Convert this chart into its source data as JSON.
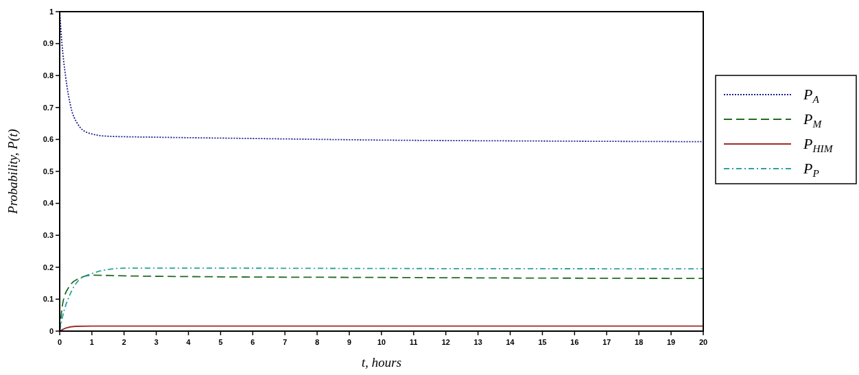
{
  "chart_data": {
    "type": "line",
    "xlabel": "t, hours",
    "ylabel": "Probability, P(t)",
    "legend": "right",
    "grid": false,
    "xlim": [
      0,
      20
    ],
    "xticks": [
      0,
      1,
      2,
      3,
      4,
      5,
      6,
      7,
      8,
      9,
      10,
      11,
      12,
      13,
      14,
      15,
      16,
      17,
      18,
      19,
      20
    ],
    "ylim": [
      0,
      1
    ],
    "yticks": [
      0,
      0.1,
      0.2,
      0.3,
      0.4,
      0.5,
      0.6,
      0.7,
      0.8,
      0.9,
      1
    ],
    "series": [
      {
        "name": "P$_{A}$",
        "color": "#1a1a8c",
        "line_style": "dotted",
        "x": [
          0,
          0.07,
          0.18,
          0.35,
          0.55,
          0.9,
          1.5,
          3,
          6,
          10,
          15,
          20
        ],
        "values": [
          1,
          0.9,
          0.8,
          0.7,
          0.65,
          0.62,
          0.61,
          0.607,
          0.603,
          0.598,
          0.595,
          0.593
        ]
      },
      {
        "name": "P$_{M}$",
        "color": "#1f6b1f",
        "line_style": "dashed",
        "x": [
          0,
          0.1,
          0.3,
          0.6,
          1,
          2,
          5,
          10,
          15,
          20
        ],
        "values": [
          0,
          0.09,
          0.14,
          0.165,
          0.175,
          0.173,
          0.17,
          0.168,
          0.166,
          0.165
        ]
      },
      {
        "name": "P$_{HI}$$_{M}$",
        "color": "#a02828",
        "line_style": "solid",
        "x": [
          0,
          0.2,
          0.5,
          1,
          20
        ],
        "values": [
          0,
          0.01,
          0.015,
          0.016,
          0.016
        ]
      },
      {
        "name": "P$_{P}$",
        "color": "#2aa0a0",
        "line_style": "dashdot",
        "x": [
          0,
          0.1,
          0.3,
          0.6,
          1,
          1.5,
          2,
          5,
          10,
          20
        ],
        "values": [
          0,
          0.05,
          0.11,
          0.16,
          0.18,
          0.193,
          0.197,
          0.197,
          0.196,
          0.195
        ]
      }
    ]
  }
}
